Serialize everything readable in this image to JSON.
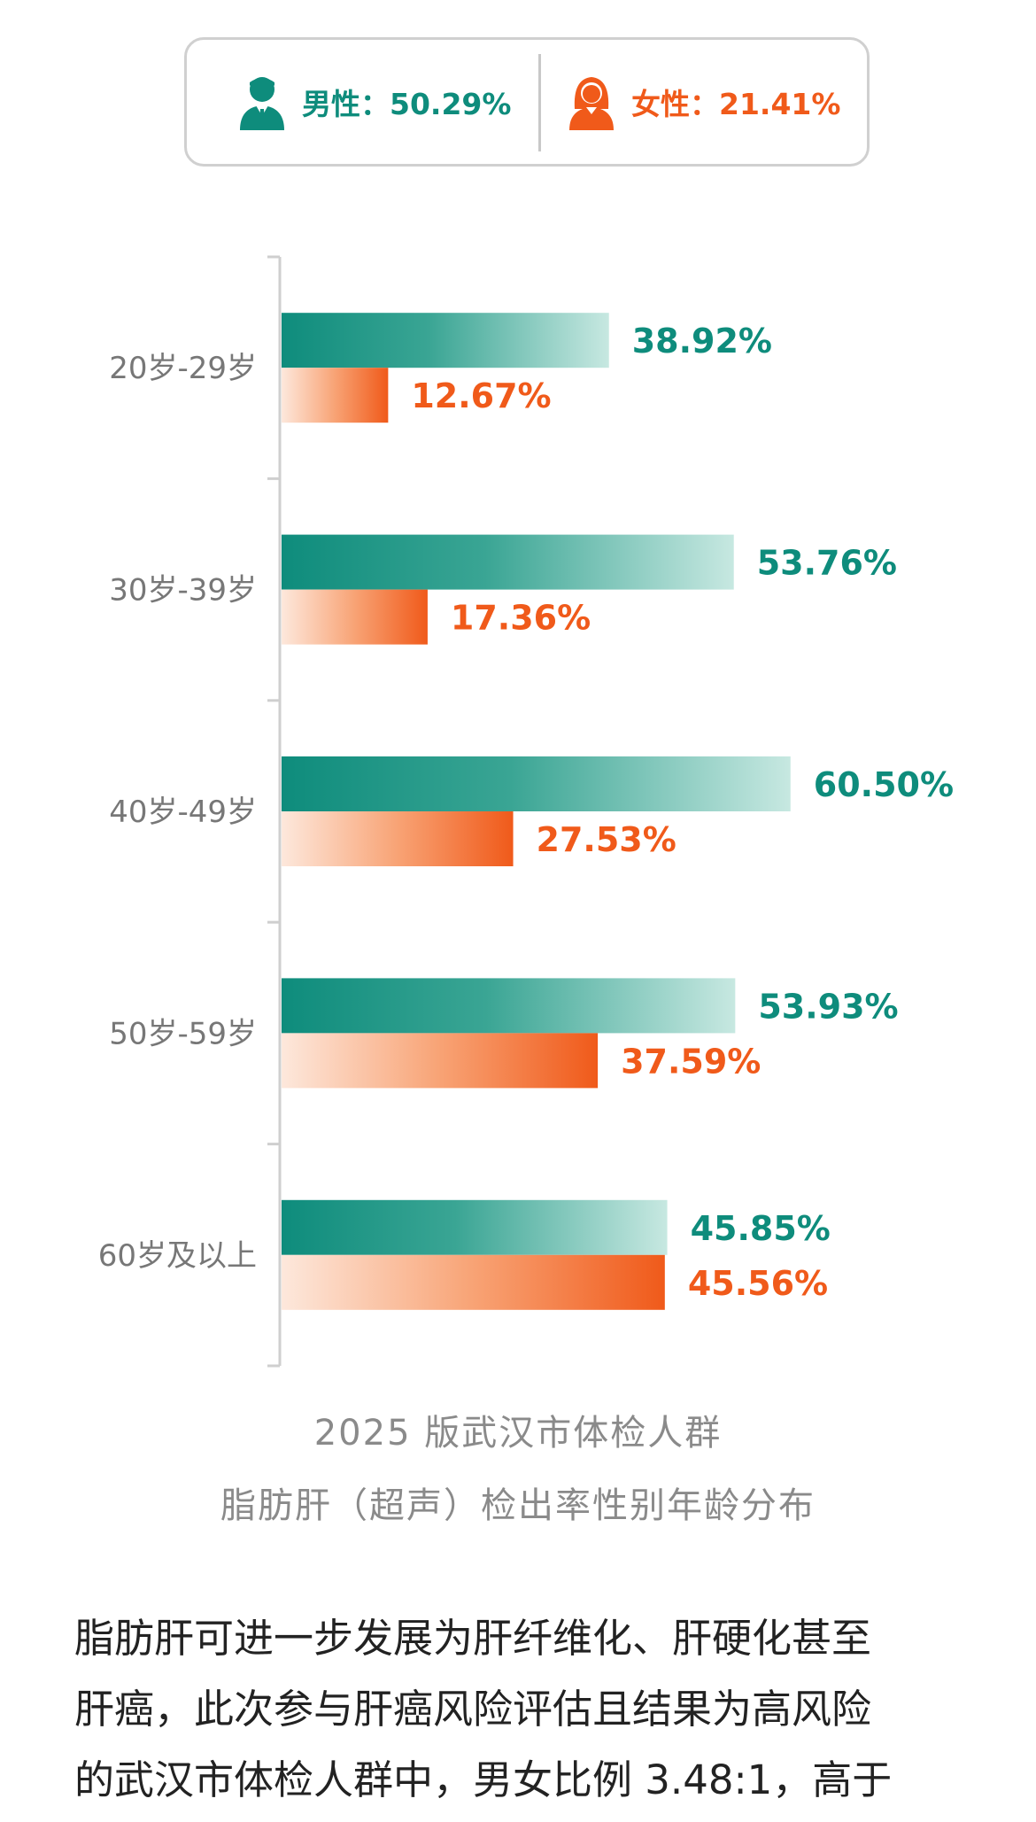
{
  "colors": {
    "male": "#0e8c7c",
    "female": "#f05a1a",
    "axis": "#cfcfcf"
  },
  "legend": {
    "male": {
      "icon": "male-person-icon",
      "label": "男性：50.29%"
    },
    "female": {
      "icon": "female-person-icon",
      "label": "女性：21.41%"
    }
  },
  "chart_data": {
    "type": "bar",
    "orientation": "horizontal",
    "categories": [
      "20岁-29岁",
      "30岁-39岁",
      "40岁-49岁",
      "50岁-59岁",
      "60岁及以上"
    ],
    "series": [
      {
        "name": "男性",
        "values": [
          38.92,
          53.76,
          60.5,
          53.93,
          45.85
        ],
        "labels": [
          "38.92%",
          "53.76%",
          "60.50%",
          "53.93%",
          "45.85%"
        ]
      },
      {
        "name": "女性",
        "values": [
          12.67,
          17.36,
          27.53,
          37.59,
          45.56
        ],
        "labels": [
          "12.67%",
          "17.36%",
          "27.53%",
          "37.59%",
          "45.56%"
        ]
      }
    ],
    "xlim": [
      0,
      70
    ],
    "grid": false,
    "title": "2025 版武汉市体检人群",
    "subtitle": "脂肪肝（超声）检出率性别年龄分布"
  },
  "body_lines": [
    "脂肪肝可进一步发展为肝纤维化、肝硬化甚至",
    "肝癌，此次参与肝癌风险评估且结果为高风险",
    "的武汉市体检人群中，男女比例 3.48:1，高于"
  ]
}
